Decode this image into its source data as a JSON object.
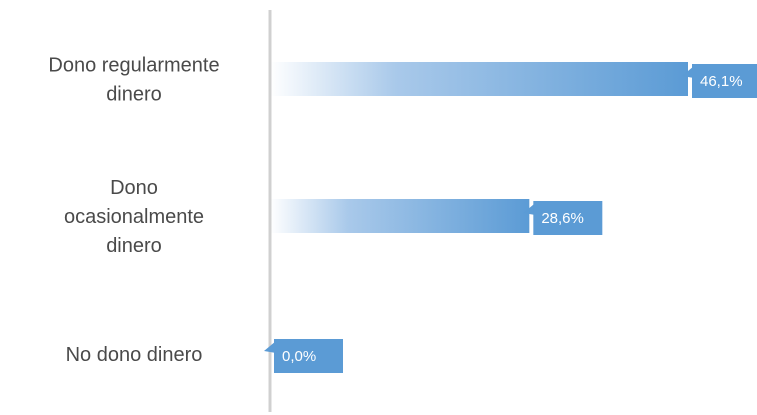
{
  "chart_data": {
    "type": "bar",
    "orientation": "horizontal",
    "categories": [
      [
        "Dono regularmente",
        "dinero"
      ],
      [
        "Dono",
        "ocasionalmente",
        "dinero"
      ],
      [
        "No dono dinero"
      ]
    ],
    "values": [
      46.1,
      28.6,
      0.0
    ],
    "value_labels": [
      "46,1%",
      "28,6%",
      "0,0%"
    ],
    "unit": "%",
    "xlim": [
      0,
      46.1
    ],
    "grid": false,
    "legend": "none",
    "colors": {
      "bar_start": "#ffffff",
      "bar_end": "#5b9bd5",
      "label_box": "#5b9bd5",
      "label_text": "#ffffff",
      "axis": "#d0d0d0",
      "category_text": "#4a4a4a"
    }
  }
}
